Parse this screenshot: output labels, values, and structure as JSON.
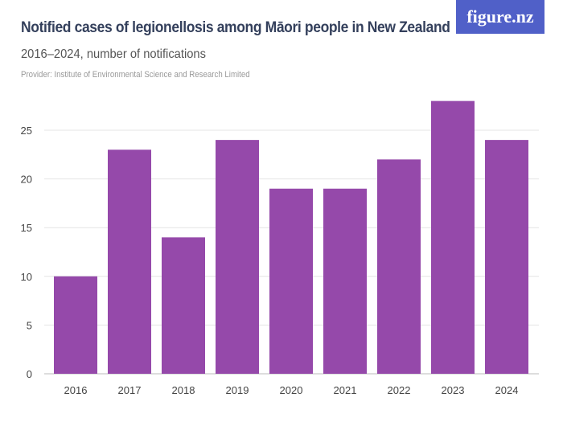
{
  "header": {
    "title": "Notified cases of legionellosis among Māori people in New Zealand",
    "subtitle": "2016–2024, number of notifications",
    "provider": "Provider: Institute of Environmental Science and Research Limited",
    "logo": "figure.nz"
  },
  "colors": {
    "bar": "#9549aa",
    "logo_bg": "#5060c8",
    "grid": "#e4e4e4"
  },
  "chart_data": {
    "type": "bar",
    "title": "Notified cases of legionellosis among Māori people in New Zealand",
    "subtitle": "2016–2024, number of notifications",
    "categories": [
      "2016",
      "2017",
      "2018",
      "2019",
      "2020",
      "2021",
      "2022",
      "2023",
      "2024"
    ],
    "values": [
      10,
      23,
      14,
      24,
      19,
      19,
      22,
      28,
      24
    ],
    "yticks": [
      0,
      5,
      10,
      15,
      20,
      25
    ],
    "ylim": [
      0,
      28
    ],
    "grid": true
  }
}
